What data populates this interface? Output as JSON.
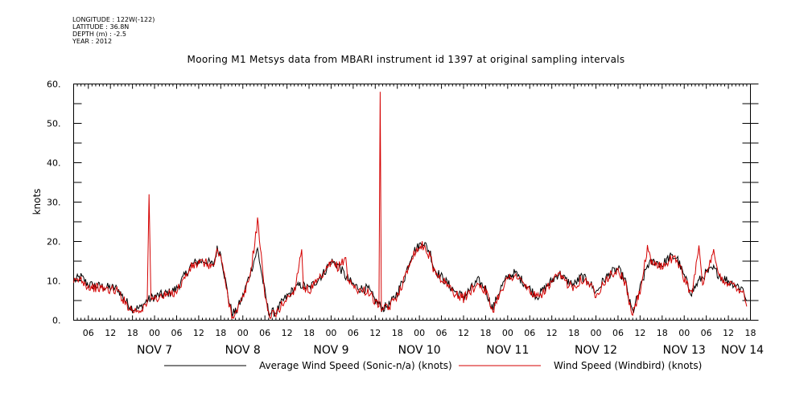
{
  "meta": {
    "longitude": "LONGITUDE : 122W(-122)",
    "latitude": "LATITUDE : 36.8N",
    "depth": "DEPTH (m) : -2.5",
    "year": "YEAR : 2012"
  },
  "chart_data": {
    "type": "line",
    "title": "Mooring M1 Metsys data from MBARI instrument id 1397 at original sampling intervals",
    "xlabel": "",
    "ylabel": "knots",
    "xlim": [
      "2012-11-06T02:00",
      "2012-11-13T18:00"
    ],
    "ylim": [
      0,
      60
    ],
    "y_ticks": [
      0,
      10,
      20,
      30,
      40,
      50,
      60
    ],
    "y_tick_labels": [
      "0.",
      "10.",
      "20.",
      "30.",
      "40.",
      "50.",
      "60."
    ],
    "hour_tick_labels": [
      "06",
      "12",
      "18",
      "00"
    ],
    "day_labels": [
      "NOV 7",
      "NOV 8",
      "NOV 9",
      "NOV 10",
      "NOV 11",
      "NOV 12",
      "NOV 13",
      "NOV 14"
    ],
    "legend_placement": "bottom",
    "series": [
      {
        "name": "Average Wind Speed (Sonic-n/a) (knots)",
        "color": "#000000",
        "points": [
          [
            "11-06 02:00",
            10
          ],
          [
            "11-06 04:00",
            11
          ],
          [
            "11-06 06:00",
            9
          ],
          [
            "11-06 10:00",
            8.5
          ],
          [
            "11-06 14:00",
            8
          ],
          [
            "11-06 16:00",
            5
          ],
          [
            "11-06 18:00",
            3
          ],
          [
            "11-06 20:00",
            3
          ],
          [
            "11-06 22:00",
            5
          ],
          [
            "11-07 00:00",
            6
          ],
          [
            "11-07 04:00",
            7
          ],
          [
            "11-07 06:00",
            8
          ],
          [
            "11-07 08:00",
            11
          ],
          [
            "11-07 10:00",
            14
          ],
          [
            "11-07 12:00",
            15
          ],
          [
            "11-07 14:00",
            15
          ],
          [
            "11-07 16:00",
            14
          ],
          [
            "11-07 17:00",
            18
          ],
          [
            "11-07 18:00",
            17
          ],
          [
            "11-07 20:00",
            6
          ],
          [
            "11-07 21:00",
            2
          ],
          [
            "11-07 22:00",
            2
          ],
          [
            "11-08 00:00",
            6
          ],
          [
            "11-08 02:00",
            12
          ],
          [
            "11-08 04:00",
            18
          ],
          [
            "11-08 06:00",
            7
          ],
          [
            "11-08 07:00",
            2
          ],
          [
            "11-08 09:00",
            2
          ],
          [
            "11-08 11:00",
            5
          ],
          [
            "11-08 12:00",
            6
          ],
          [
            "11-08 14:00",
            8
          ],
          [
            "11-08 16:00",
            9
          ],
          [
            "11-08 18:00",
            8
          ],
          [
            "11-08 20:00",
            10
          ],
          [
            "11-08 22:00",
            12
          ],
          [
            "11-09 00:00",
            15
          ],
          [
            "11-09 02:00",
            14
          ],
          [
            "11-09 04:00",
            11
          ],
          [
            "11-09 06:00",
            9
          ],
          [
            "11-09 08:00",
            8
          ],
          [
            "11-09 10:00",
            8
          ],
          [
            "11-09 12:00",
            5
          ],
          [
            "11-09 13:00",
            4
          ],
          [
            "11-09 14:00",
            3
          ],
          [
            "11-09 16:00",
            4
          ],
          [
            "11-09 18:00",
            7
          ],
          [
            "11-09 20:00",
            11
          ],
          [
            "11-09 22:00",
            17
          ],
          [
            "11-10 00:00",
            19
          ],
          [
            "11-10 01:00",
            20
          ],
          [
            "11-10 03:00",
            17
          ],
          [
            "11-10 04:00",
            13
          ],
          [
            "11-10 06:00",
            11
          ],
          [
            "11-10 08:00",
            9
          ],
          [
            "11-10 10:00",
            7
          ],
          [
            "11-10 12:00",
            6
          ],
          [
            "11-10 14:00",
            8
          ],
          [
            "11-10 16:00",
            10
          ],
          [
            "11-10 18:00",
            8
          ],
          [
            "11-10 19:00",
            5
          ],
          [
            "11-10 20:00",
            3
          ],
          [
            "11-10 22:00",
            8
          ],
          [
            "11-11 00:00",
            11
          ],
          [
            "11-11 02:00",
            12
          ],
          [
            "11-11 04:00",
            10
          ],
          [
            "11-11 06:00",
            8
          ],
          [
            "11-11 08:00",
            6
          ],
          [
            "11-11 10:00",
            8
          ],
          [
            "11-11 12:00",
            10
          ],
          [
            "11-11 14:00",
            12
          ],
          [
            "11-11 16:00",
            10
          ],
          [
            "11-11 18:00",
            9
          ],
          [
            "11-11 20:00",
            11
          ],
          [
            "11-11 22:00",
            10
          ],
          [
            "11-12 00:00",
            7
          ],
          [
            "11-12 02:00",
            10
          ],
          [
            "11-12 04:00",
            12
          ],
          [
            "11-12 06:00",
            13
          ],
          [
            "11-12 08:00",
            10
          ],
          [
            "11-12 09:00",
            5
          ],
          [
            "11-12 10:00",
            2
          ],
          [
            "11-12 12:00",
            8
          ],
          [
            "11-12 14:00",
            14
          ],
          [
            "11-12 16:00",
            15
          ],
          [
            "11-12 18:00",
            14
          ],
          [
            "11-12 20:00",
            16
          ],
          [
            "11-12 22:00",
            16
          ],
          [
            "11-13 00:00",
            11
          ],
          [
            "11-13 02:00",
            7
          ],
          [
            "11-13 04:00",
            10
          ],
          [
            "11-13 06:00",
            12
          ],
          [
            "11-13 08:00",
            13
          ],
          [
            "11-13 10:00",
            11
          ],
          [
            "11-13 12:00",
            10
          ],
          [
            "11-13 14:00",
            9
          ],
          [
            "11-13 16:00",
            8
          ],
          [
            "11-13 17:00",
            5
          ]
        ]
      },
      {
        "name": "Wind Speed (Windbird) (knots)",
        "color": "#d40000",
        "points": [
          [
            "11-06 02:00",
            9.5
          ],
          [
            "11-06 04:00",
            10.5
          ],
          [
            "11-06 06:00",
            8.5
          ],
          [
            "11-06 10:00",
            8
          ],
          [
            "11-06 14:00",
            7.5
          ],
          [
            "11-06 16:00",
            4.5
          ],
          [
            "11-06 18:00",
            2.5
          ],
          [
            "11-06 20:00",
            2.5
          ],
          [
            "11-06 22:00",
            4.5
          ],
          [
            "11-06 22:30",
            32
          ],
          [
            "11-06 23:00",
            5
          ],
          [
            "11-07 00:00",
            5.5
          ],
          [
            "11-07 04:00",
            6.5
          ],
          [
            "11-07 06:00",
            7.5
          ],
          [
            "11-07 08:00",
            10.5
          ],
          [
            "11-07 10:00",
            13.5
          ],
          [
            "11-07 12:00",
            14.5
          ],
          [
            "11-07 14:00",
            14.5
          ],
          [
            "11-07 16:00",
            13.5
          ],
          [
            "11-07 17:00",
            17.5
          ],
          [
            "11-07 18:00",
            16.5
          ],
          [
            "11-07 20:00",
            5.5
          ],
          [
            "11-07 21:00",
            1.5
          ],
          [
            "11-07 22:00",
            1.5
          ],
          [
            "11-08 00:00",
            5.5
          ],
          [
            "11-08 02:00",
            11.5
          ],
          [
            "11-08 04:00",
            25
          ],
          [
            "11-08 05:00",
            17
          ],
          [
            "11-08 06:00",
            6.5
          ],
          [
            "11-08 07:00",
            1.5
          ],
          [
            "11-08 09:00",
            1.5
          ],
          [
            "11-08 11:00",
            4.5
          ],
          [
            "11-08 12:00",
            5.5
          ],
          [
            "11-08 14:00",
            7.5
          ],
          [
            "11-08 16:00",
            18
          ],
          [
            "11-08 16:30",
            8.5
          ],
          [
            "11-08 18:00",
            7.5
          ],
          [
            "11-08 20:00",
            9.5
          ],
          [
            "11-08 22:00",
            11.5
          ],
          [
            "11-09 00:00",
            14.5
          ],
          [
            "11-09 02:00",
            13.5
          ],
          [
            "11-09 04:00",
            16
          ],
          [
            "11-09 04:30",
            10.5
          ],
          [
            "11-09 06:00",
            8.5
          ],
          [
            "11-09 08:00",
            7.5
          ],
          [
            "11-09 10:00",
            7.5
          ],
          [
            "11-09 12:00",
            4.5
          ],
          [
            "11-09 13:00",
            3.5
          ],
          [
            "11-09 13:20",
            58
          ],
          [
            "11-09 13:40",
            3.5
          ],
          [
            "11-09 14:00",
            2.5
          ],
          [
            "11-09 16:00",
            3.5
          ],
          [
            "11-09 18:00",
            6.5
          ],
          [
            "11-09 20:00",
            10.5
          ],
          [
            "11-09 22:00",
            16.5
          ],
          [
            "11-10 00:00",
            18.5
          ],
          [
            "11-10 01:00",
            19
          ],
          [
            "11-10 03:00",
            16
          ],
          [
            "11-10 04:00",
            12.5
          ],
          [
            "11-10 06:00",
            10.5
          ],
          [
            "11-10 08:00",
            8.5
          ],
          [
            "11-10 10:00",
            6.5
          ],
          [
            "11-10 12:00",
            5.5
          ],
          [
            "11-10 14:00",
            7.5
          ],
          [
            "11-10 16:00",
            9.5
          ],
          [
            "11-10 18:00",
            7.5
          ],
          [
            "11-10 19:00",
            4.5
          ],
          [
            "11-10 20:00",
            2.5
          ],
          [
            "11-10 22:00",
            7.5
          ],
          [
            "11-11 00:00",
            10.5
          ],
          [
            "11-11 02:00",
            11.5
          ],
          [
            "11-11 04:00",
            9.5
          ],
          [
            "11-11 06:00",
            7.5
          ],
          [
            "11-11 08:00",
            5.5
          ],
          [
            "11-11 10:00",
            7.5
          ],
          [
            "11-11 12:00",
            9.5
          ],
          [
            "11-11 14:00",
            11.5
          ],
          [
            "11-11 16:00",
            9.5
          ],
          [
            "11-11 18:00",
            8.5
          ],
          [
            "11-11 20:00",
            10.5
          ],
          [
            "11-11 22:00",
            9.5
          ],
          [
            "11-12 00:00",
            6.5
          ],
          [
            "11-12 02:00",
            9.5
          ],
          [
            "11-12 04:00",
            11.5
          ],
          [
            "11-12 06:00",
            12.5
          ],
          [
            "11-12 08:00",
            9.5
          ],
          [
            "11-12 09:00",
            4.5
          ],
          [
            "11-12 10:00",
            1.5
          ],
          [
            "11-12 12:00",
            7.5
          ],
          [
            "11-12 14:00",
            18
          ],
          [
            "11-12 15:00",
            14.5
          ],
          [
            "11-12 16:00",
            14.5
          ],
          [
            "11-12 18:00",
            13.5
          ],
          [
            "11-12 20:00",
            15.5
          ],
          [
            "11-12 22:00",
            15.5
          ],
          [
            "11-13 00:00",
            10.5
          ],
          [
            "11-13 02:00",
            6.5
          ],
          [
            "11-13 04:00",
            19
          ],
          [
            "11-13 05:00",
            10
          ],
          [
            "11-13 06:00",
            11.5
          ],
          [
            "11-13 08:00",
            17
          ],
          [
            "11-13 09:00",
            12.5
          ],
          [
            "11-13 10:00",
            10.5
          ],
          [
            "11-13 12:00",
            9.5
          ],
          [
            "11-13 14:00",
            8.5
          ],
          [
            "11-13 16:00",
            7.5
          ],
          [
            "11-13 17:00",
            3.5
          ]
        ]
      }
    ]
  }
}
